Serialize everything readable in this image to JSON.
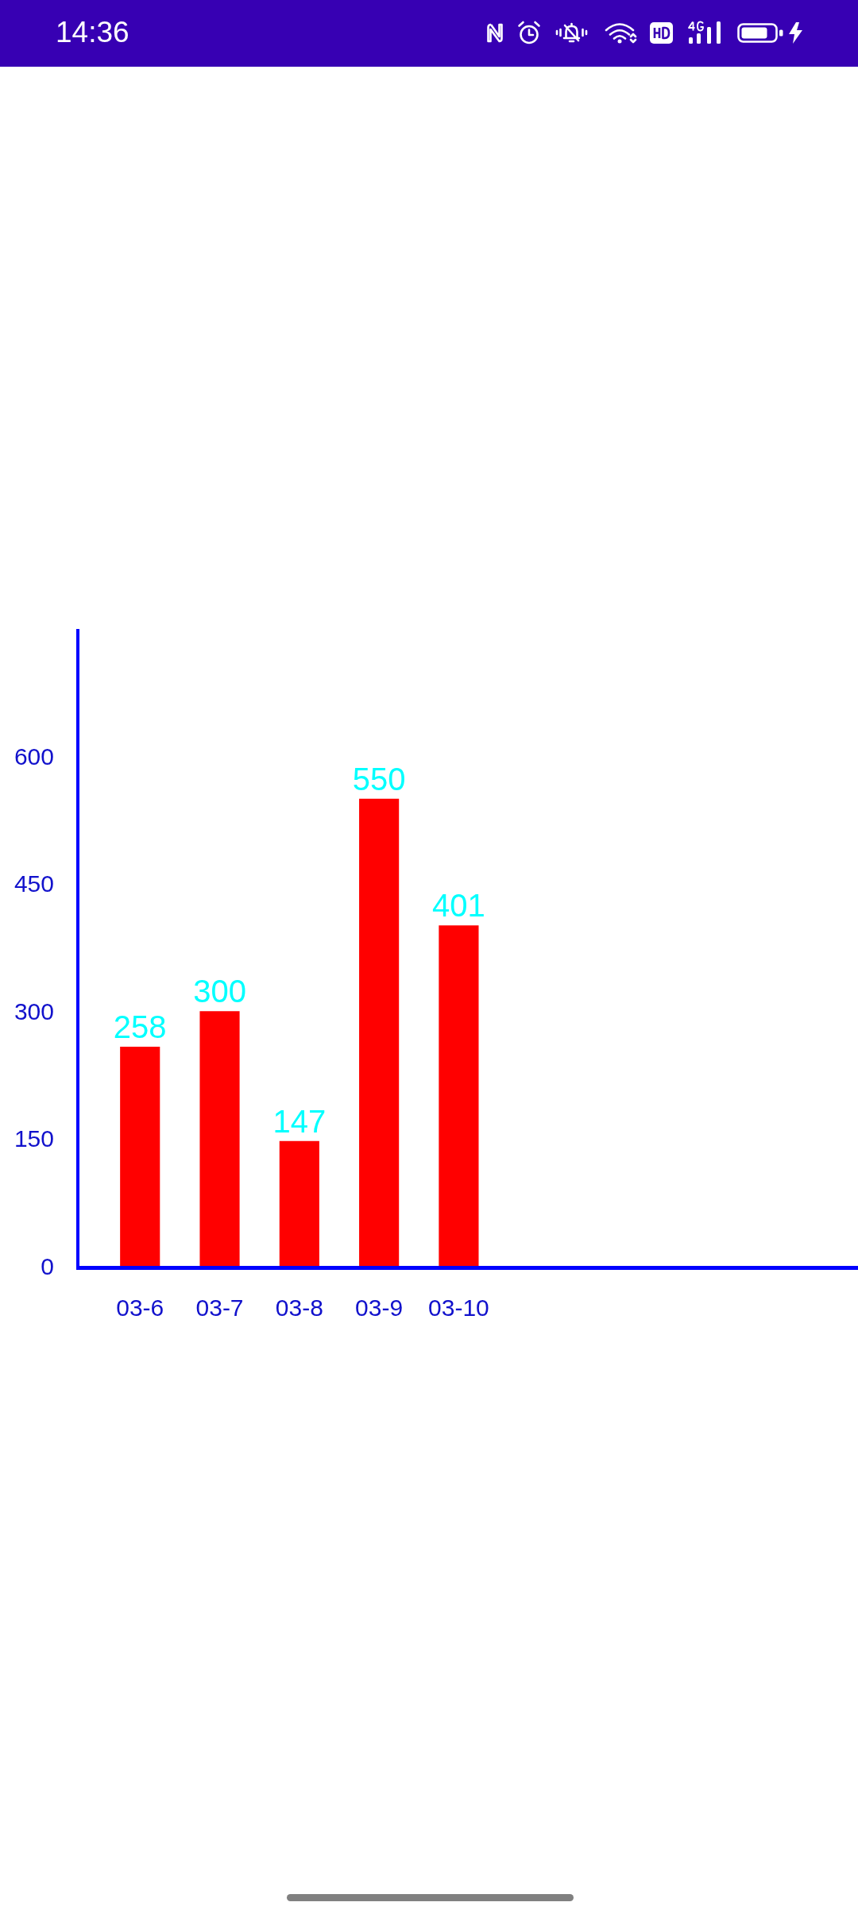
{
  "chart_data": {
    "type": "bar",
    "categories": [
      "03-6",
      "03-7",
      "03-8",
      "03-9",
      "03-10"
    ],
    "values": [
      258,
      300,
      147,
      550,
      401
    ],
    "color": "#ff0000",
    "ylim": [
      0,
      750
    ],
    "yticks": [
      0,
      150,
      300,
      450,
      600
    ],
    "grid": false,
    "data_labels": true,
    "annotations": [
      "14:36"
    ]
  }
}
